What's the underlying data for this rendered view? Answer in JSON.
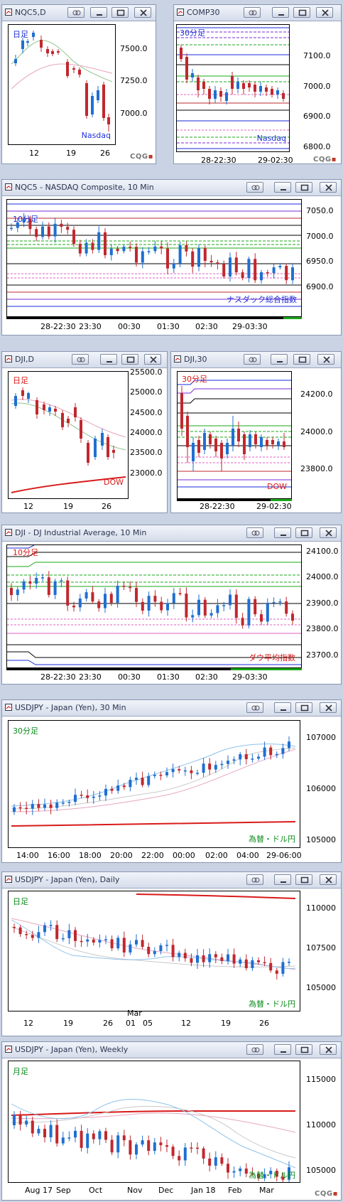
{
  "colors": {
    "up": "#1f6fd1",
    "down": "#c0282e",
    "blue_label": "#1e2fd6",
    "red_label": "#d81a1a",
    "green_label": "#0b8c1b"
  },
  "windows": [
    {
      "id": "nq_daily",
      "title": "NQC5,D",
      "timeframe_label": "日足",
      "name_label": "Nasdaq",
      "label_color": "blue",
      "yticks": [
        "7500.0",
        "7250.0",
        "7000.0"
      ],
      "xticks": [
        "12",
        "19",
        "26"
      ],
      "cqg": true,
      "xaxis_bar": false
    },
    {
      "id": "comp_30",
      "title": "COMP30",
      "timeframe_label": "30分足",
      "name_label": "Nasdaq",
      "label_color": "blue",
      "yticks": [
        "7100.0",
        "7000.0",
        "6900.0",
        "6800.0"
      ],
      "xticks": [
        "28-22:30",
        "29-02:30"
      ],
      "cqg": true,
      "xaxis_bar": false
    },
    {
      "id": "nq_10",
      "title": "NQC5 - NASDAQ Composite, 10 Min",
      "timeframe_label": "10分足",
      "name_label": "ナスダック総合指数",
      "label_color": "blue",
      "yticks": [
        "7050.0",
        "7000.0",
        "6950.0",
        "6900.0"
      ],
      "xticks": [
        "28-22:30",
        "23:30",
        "00:30",
        "01:30",
        "02:30",
        "29-03:30"
      ],
      "cqg": false,
      "xaxis_bar": true
    },
    {
      "id": "dji_daily",
      "title": "DJI,D",
      "timeframe_label": "日足",
      "name_label": "DOW",
      "label_color": "red",
      "yticks": [
        "25500.0",
        "25000.0",
        "24500.0",
        "24000.0",
        "23500.0",
        "23000.0"
      ],
      "xticks": [
        "12",
        "19",
        "26"
      ],
      "cqg": false,
      "xaxis_bar": false
    },
    {
      "id": "dji_30",
      "title": "DJI,30",
      "timeframe_label": "30分足",
      "name_label": "DOW",
      "label_color": "red",
      "yticks": [
        "24200.0",
        "24000.0",
        "23800.0"
      ],
      "xticks": [
        "28-22:30",
        "29-02:30"
      ],
      "cqg": false,
      "xaxis_bar": true
    },
    {
      "id": "dji_10",
      "title": "DJI - DJ Industrial Average, 10 Min",
      "timeframe_label": "10分足",
      "name_label": "ダウ平均指数",
      "label_color": "red",
      "yticks": [
        "24100.0",
        "24000.0",
        "23900.0",
        "23800.0",
        "23700.0"
      ],
      "xticks": [
        "28-22:30",
        "23:30",
        "00:30",
        "01:30",
        "02:30",
        "29-03:30"
      ],
      "cqg": false,
      "xaxis_bar": true
    },
    {
      "id": "usdjpy_30",
      "title": "USDJPY - Japan (Yen), 30 Min",
      "timeframe_label": "30分足",
      "name_label": "為替・ドル円",
      "label_color": "green",
      "yticks": [
        "107000",
        "106000",
        "105000"
      ],
      "xticks": [
        "14:00",
        "16:00",
        "18:00",
        "20:00",
        "22:00",
        "00:00",
        "02:00",
        "04:00",
        "29-06:00"
      ],
      "cqg": false,
      "xaxis_bar": false
    },
    {
      "id": "usdjpy_daily",
      "title": "USDJPY - Japan (Yen), Daily",
      "timeframe_label": "日足",
      "name_label": "為替・ドル円",
      "label_color": "green",
      "yticks": [
        "110000",
        "107500",
        "105000"
      ],
      "xticks": [
        "12",
        "19",
        "26",
        "01",
        "05",
        "12",
        "19",
        "26"
      ],
      "xsub": "Mar",
      "cqg": false,
      "xaxis_bar": false
    },
    {
      "id": "usdjpy_weekly",
      "title": "USDJPY - Japan (Yen), Weekly",
      "timeframe_label": "月足",
      "name_label": "為替・ドル円",
      "label_color": "green",
      "yticks": [
        "115000",
        "110000",
        "105000"
      ],
      "xticks": [
        "Aug 17",
        "Sep",
        "Oct",
        "Nov",
        "Dec",
        "Jan 18",
        "Feb",
        "Mar"
      ],
      "cqg": true,
      "xaxis_bar": false
    }
  ]
}
